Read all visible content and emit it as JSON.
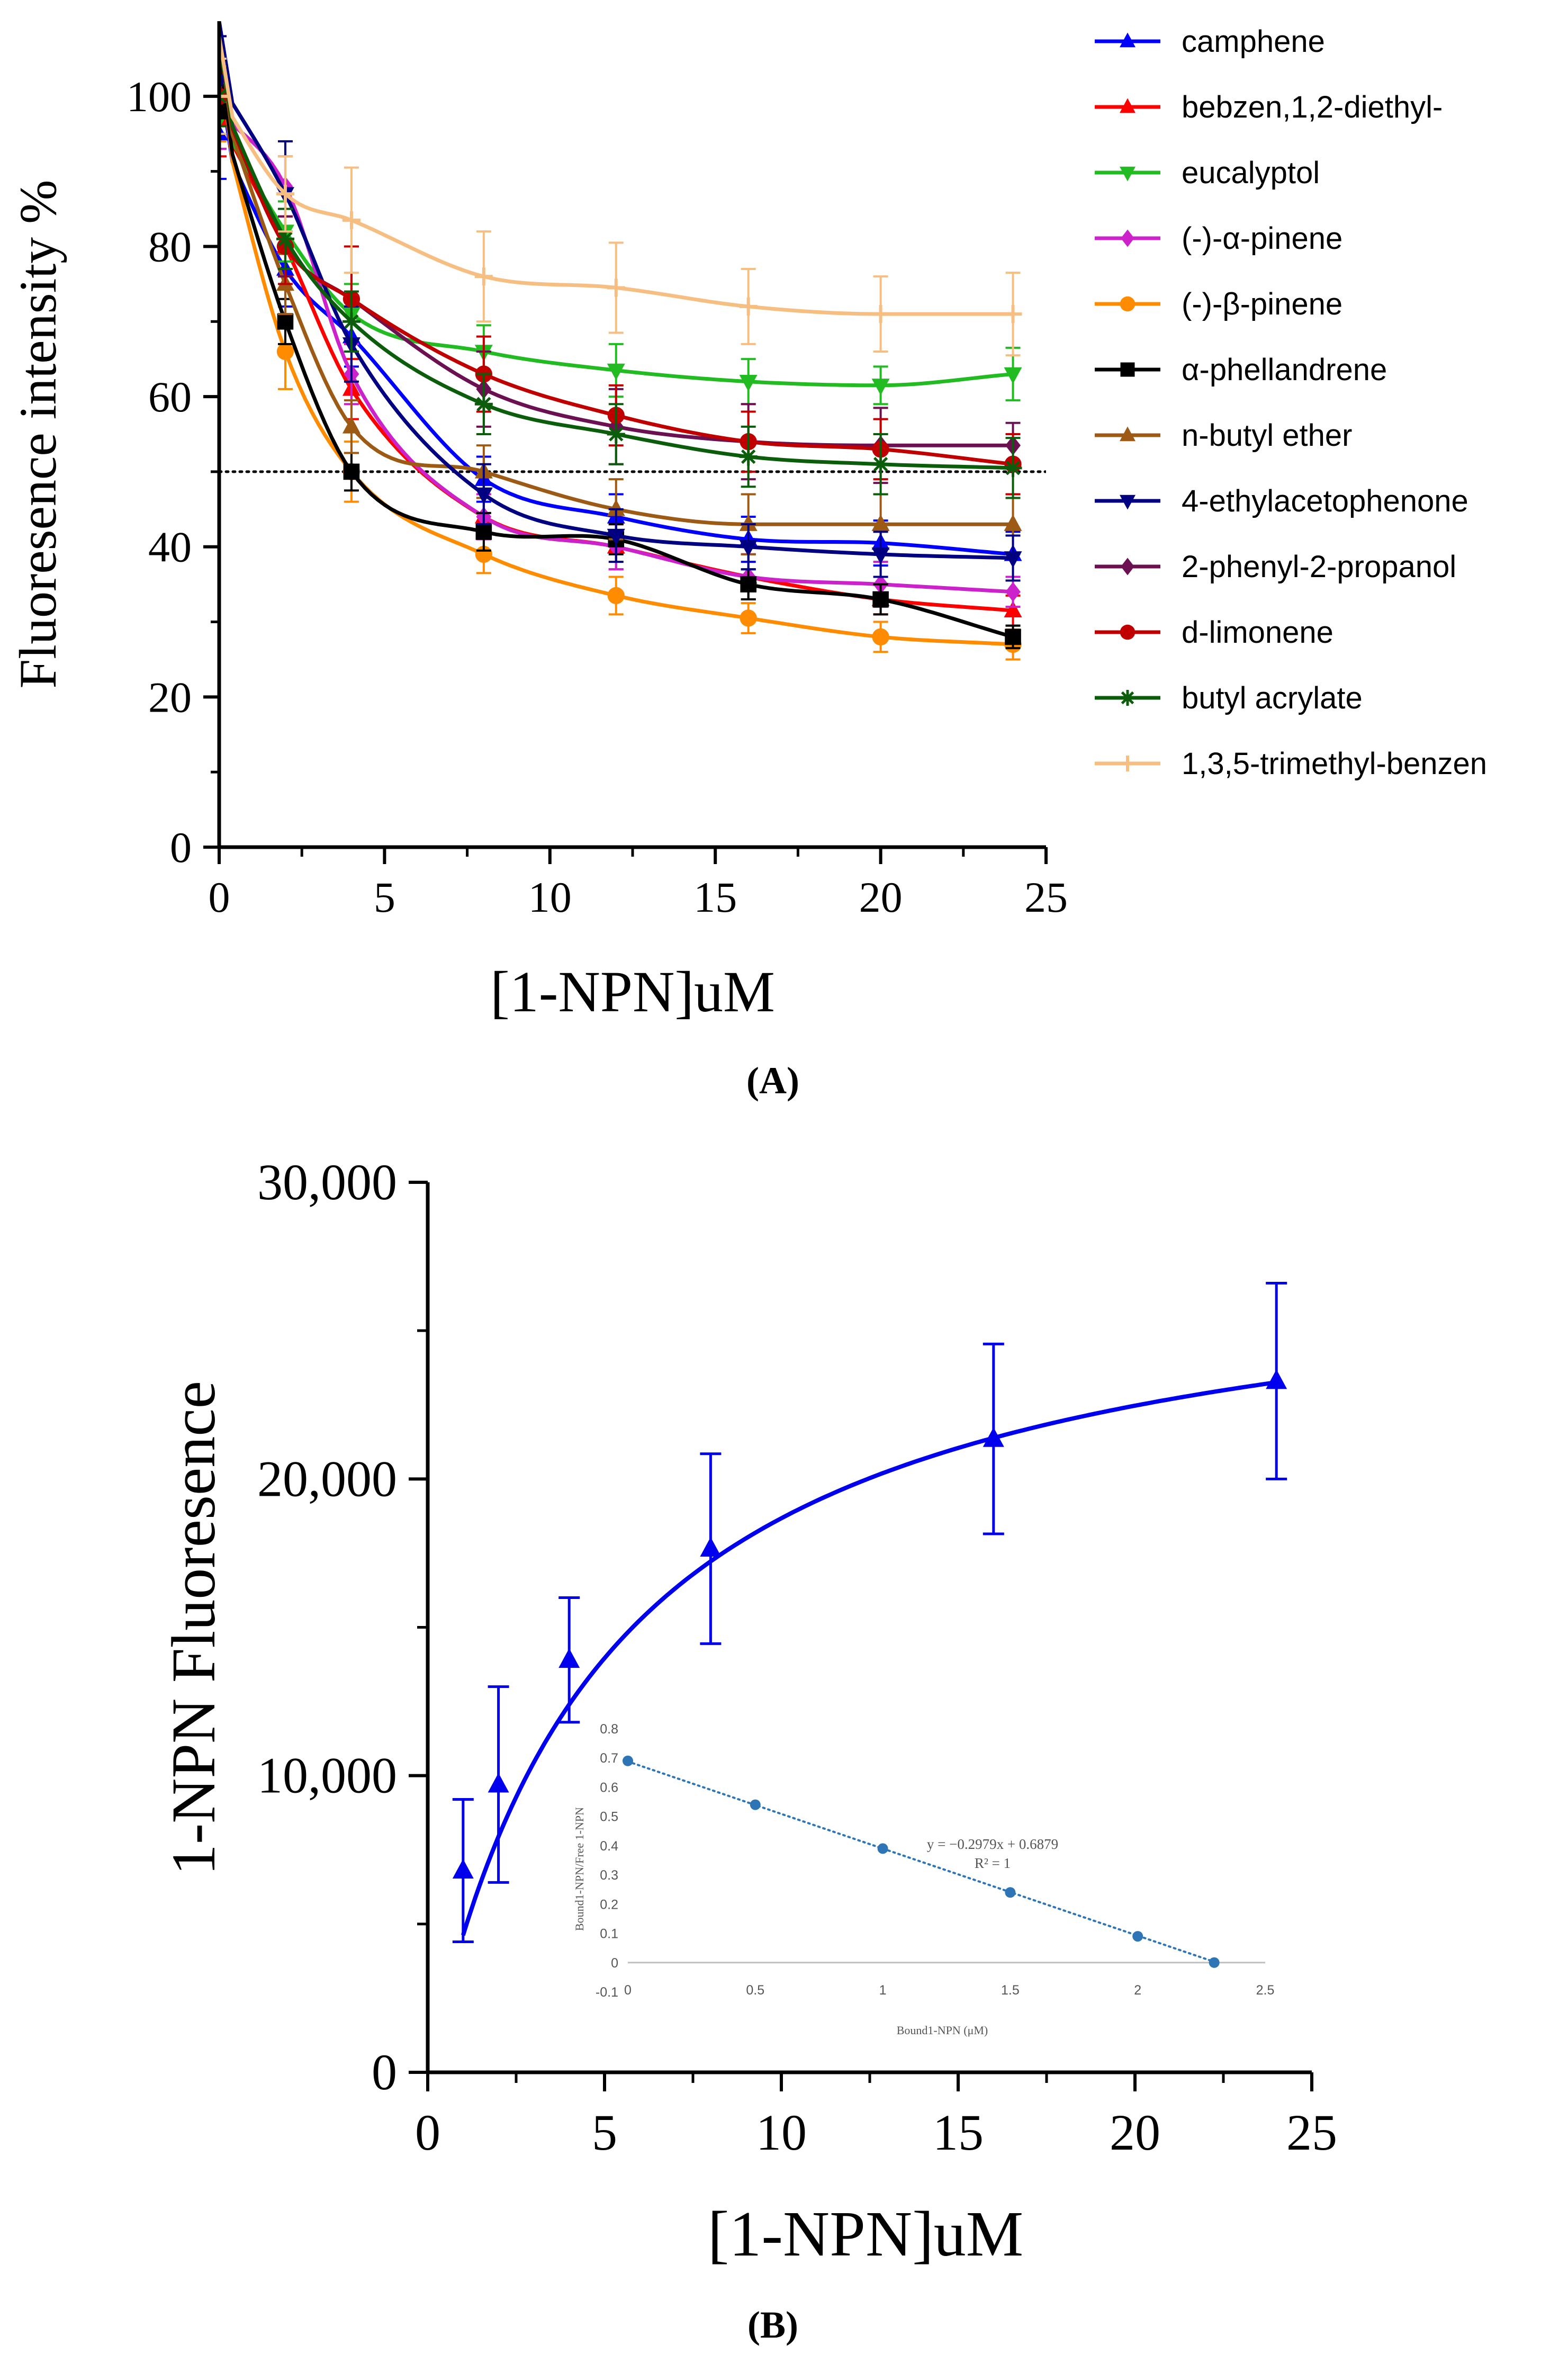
{
  "chart_data": [
    {
      "type": "line",
      "panel_label": "(A)",
      "title": "",
      "xlabel": "[1-NPN]uM",
      "ylabel": "Fluoresence intensity %",
      "xlim": [
        0,
        25
      ],
      "ylim": [
        0,
        110
      ],
      "xticks": [
        "0",
        "5",
        "10",
        "15",
        "20",
        "25"
      ],
      "yticks": [
        "0",
        "20",
        "40",
        "60",
        "80",
        "100"
      ],
      "xtick_values": [
        0,
        5,
        10,
        15,
        20,
        25
      ],
      "ytick_values": [
        0,
        20,
        40,
        60,
        80,
        100
      ],
      "reference_line": {
        "y": 50,
        "style": "dotted"
      },
      "legend_position": "right",
      "x": [
        0,
        2,
        4,
        8,
        12,
        16,
        20,
        24
      ],
      "series": [
        {
          "name": "camphene",
          "color": "#0000ff",
          "marker": "triangle-up",
          "values": [
            95,
            77,
            68,
            49,
            44,
            41,
            40.5,
            39
          ],
          "errors": [
            6,
            5,
            4,
            3,
            3,
            3,
            3,
            3
          ]
        },
        {
          "name": "bebzen,1,2-diethyl-",
          "color": "#ff0000",
          "marker": "triangle-up",
          "values": [
            97,
            80,
            61,
            44,
            40,
            36,
            33,
            31.5
          ],
          "errors": [
            5,
            4,
            4,
            3,
            3,
            3,
            2,
            2
          ]
        },
        {
          "name": "eucalyptol",
          "color": "#22bb22",
          "marker": "triangle-down",
          "values": [
            97,
            82,
            71,
            66,
            63.5,
            62,
            61.5,
            63
          ],
          "errors": [
            4,
            4,
            4,
            3.5,
            3.5,
            3,
            2.5,
            3.5
          ]
        },
        {
          "name": "(-)-α-pinene",
          "color": "#cc22cc",
          "marker": "diamond",
          "values": [
            98,
            88,
            63,
            44,
            40,
            36,
            35,
            34
          ],
          "errors": [
            5,
            4,
            4,
            3,
            3,
            3,
            3,
            2
          ]
        },
        {
          "name": "(-)-β-pinene",
          "color": "#ff8c00",
          "marker": "circle",
          "values": [
            98,
            66,
            50,
            39,
            33.5,
            30.5,
            28,
            27
          ],
          "errors": [
            4,
            5,
            4,
            2.5,
            2.5,
            2,
            2,
            2
          ]
        },
        {
          "name": "α-phellandrene",
          "color": "#000000",
          "marker": "square",
          "values": [
            98,
            70,
            50,
            42,
            41,
            35,
            33,
            28
          ],
          "errors": [
            3,
            3,
            2.5,
            2.5,
            2,
            2,
            2,
            1.5
          ]
        },
        {
          "name": "n-butyl ether",
          "color": "#9c5a14",
          "marker": "triangle-up",
          "values": [
            100,
            75,
            56,
            50,
            45,
            43,
            43,
            43
          ],
          "errors": [
            4,
            4,
            3.5,
            3.5,
            4,
            4,
            4,
            4
          ]
        },
        {
          "name": "4-ethylacetophenone",
          "color": "#000080",
          "marker": "triangle-down",
          "values": [
            102,
            87,
            67,
            47,
            41.5,
            40,
            39,
            38.5
          ],
          "errors": [
            6,
            7,
            5,
            4,
            3.5,
            3,
            3,
            3
          ]
        },
        {
          "name": "2-phenyl-2-propanol",
          "color": "#6b1050",
          "marker": "diamond",
          "values": [
            100,
            80,
            73,
            61,
            56,
            54,
            53.5,
            53.5
          ],
          "errors": [
            4,
            4,
            7,
            5,
            5,
            5,
            5,
            3
          ]
        },
        {
          "name": "d-limonene",
          "color": "#c00000",
          "marker": "circle",
          "values": [
            100,
            80,
            73,
            63,
            57.5,
            54,
            53,
            51
          ],
          "errors": [
            4,
            5,
            7,
            5,
            4,
            4,
            4,
            4
          ]
        },
        {
          "name": "butyl acrylate",
          "color": "#0b5d0b",
          "marker": "star",
          "values": [
            100,
            81,
            70,
            59,
            55,
            52,
            51,
            50.5
          ],
          "errors": [
            4,
            4,
            4,
            4,
            4,
            4,
            4,
            4
          ]
        },
        {
          "name": "1,3,5-trimethyl-benzen",
          "color": "#f7be82",
          "marker": "plus",
          "values": [
            100,
            87,
            83.5,
            76,
            74.5,
            72,
            71,
            71
          ],
          "errors": [
            5,
            5,
            7,
            6,
            6,
            5,
            5,
            5.5
          ]
        }
      ]
    },
    {
      "type": "line",
      "panel_label": "(B)",
      "title": "",
      "xlabel": "[1-NPN]uM",
      "ylabel": "1-NPN Fluoresence",
      "xlim": [
        0,
        25
      ],
      "ylim": [
        0,
        30000
      ],
      "xticks": [
        "0",
        "5",
        "10",
        "15",
        "20",
        "25"
      ],
      "yticks": [
        "0",
        "10,000",
        "20,000",
        "30,000"
      ],
      "xtick_values": [
        0,
        5,
        10,
        15,
        20,
        25
      ],
      "ytick_values": [
        0,
        10000,
        20000,
        30000
      ],
      "series": [
        {
          "name": "1-NPN binding",
          "color": "#0000ee",
          "marker": "triangle-up",
          "x": [
            1,
            2,
            4,
            8,
            16,
            24
          ],
          "values": [
            6800,
            9700,
            13900,
            17650,
            21350,
            23300
          ],
          "errors": [
            2400,
            3300,
            2100,
            3200,
            3200,
            3300
          ]
        }
      ],
      "inset": {
        "type": "scatter",
        "xlabel": "Bound1-NPN (μM)",
        "ylabel": "Bound1-NPN/Free 1-NPN",
        "xlim": [
          -0.05,
          2.55
        ],
        "ylim": [
          -0.1,
          0.8
        ],
        "xticks": [
          "0",
          "0.5",
          "1",
          "1.5",
          "2",
          "2.5"
        ],
        "yticks": [
          "-0.1",
          "0",
          "0.1",
          "0.2",
          "0.3",
          "0.4",
          "0.5",
          "0.6",
          "0.7",
          "0.8"
        ],
        "xtick_values": [
          0,
          0.5,
          1,
          1.5,
          2,
          2.5
        ],
        "ytick_values": [
          -0.1,
          0,
          0.1,
          0.2,
          0.3,
          0.4,
          0.5,
          0.6,
          0.7,
          0.8
        ],
        "color": "#2e75b6",
        "points": {
          "x": [
            0.0,
            0.5,
            1.0,
            1.5,
            2.0,
            2.3
          ],
          "y": [
            0.69,
            0.54,
            0.39,
            0.24,
            0.09,
            0.0
          ]
        },
        "trendline": {
          "slope": -0.2979,
          "intercept": 0.6879,
          "x_range": [
            0,
            2.3
          ]
        },
        "equation": "y = −0.2979x + 0.6879",
        "r2_label": "R² = 1"
      }
    }
  ]
}
